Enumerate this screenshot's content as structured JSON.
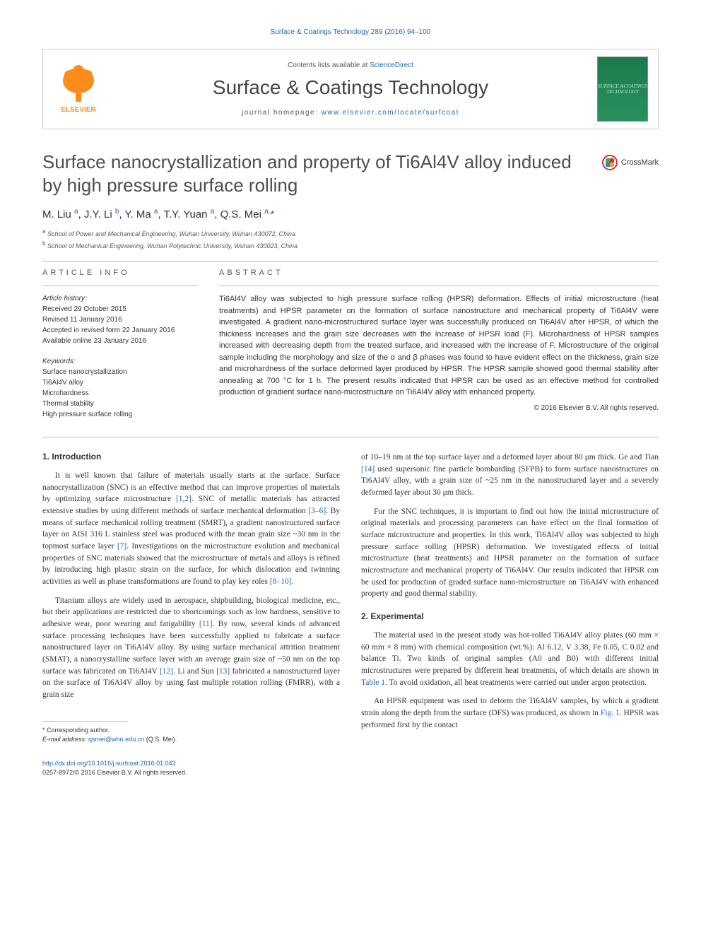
{
  "top_link": "Surface & Coatings Technology 289 (2016) 94–100",
  "header": {
    "contents_prefix": "Contents lists available at ",
    "contents_link_text": "ScienceDirect",
    "journal_name": "Surface & Coatings Technology",
    "homepage_prefix": "journal homepage: ",
    "homepage_link_text": "www.elsevier.com/locate/surfcoat",
    "cover_text": "SURFACE\n&COATINGS\nTECHNOLOGY",
    "elsevier_tree_color": "#ff8c1a",
    "elsevier_text": "ELSEVIER",
    "cover_bg_top": "#1a7a4a",
    "cover_bg_bottom": "#2a9060"
  },
  "title": "Surface nanocrystallization and property of Ti6Al4V alloy induced by high pressure surface rolling",
  "crossmark_label": "CrossMark",
  "authors_html": "M. Liu <sup>a</sup>, J.Y. Li <sup>b</sup>, Y. Ma <sup>a</sup>, T.Y. Yuan <sup>a</sup>, Q.S. Mei <sup class='author-link'>a,</sup><span class='author-link'>*</span>",
  "affiliations": [
    {
      "sup": "a",
      "text": "School of Power and Mechanical Engineering, Wuhan University, Wuhan 430072, China"
    },
    {
      "sup": "b",
      "text": "School of Mechanical Engineering, Wuhan Polytechnic University, Wuhan 430023, China"
    }
  ],
  "article_info": {
    "section_label": "article info",
    "history_label": "Article history:",
    "history": [
      "Received 29 October 2015",
      "Revised 11 January 2016",
      "Accepted in revised form 22 January 2016",
      "Available online 23 January 2016"
    ],
    "keywords_label": "Keywords:",
    "keywords": [
      "Surface nanocrystallization",
      "Ti6Al4V alloy",
      "Microhardness",
      "Thermal stability",
      "High pressure surface rolling"
    ]
  },
  "abstract": {
    "section_label": "abstract",
    "text": "Ti6Al4V alloy was subjected to high pressure surface rolling (HPSR) deformation. Effects of initial microstructure (heat treatments) and HPSR parameter on the formation of surface nanostructure and mechanical property of Ti6Al4V were investigated. A gradient nano-microstructured surface layer was successfully produced on Ti6Al4V after HPSR, of which the thickness increases and the grain size decreases with the increase of HPSR load (F). Microhardness of HPSR samples increased with decreasing depth from the treated surface, and increased with the increase of F. Microstructure of the original sample including the morphology and size of the α and β phases was found to have evident effect on the thickness, grain size and microhardness of the surface deformed layer produced by HPSR. The HPSR sample showed good thermal stability after annealing at 700 °C for 1 h. The present results indicated that HPSR can be used as an effective method for controlled production of gradient surface nano-microstructure on Ti6Al4V alloy with enhanced property.",
    "copyright": "© 2016 Elsevier B.V. All rights reserved."
  },
  "sections": {
    "intro_heading": "1. Introduction",
    "exp_heading": "2. Experimental",
    "col1_paras": [
      "It is well known that failure of materials usually starts at the surface. Surface nanocrystallization (SNC) is an effective method that can improve properties of materials by optimizing surface microstructure [1,2]. SNC of metallic materials has attracted extensive studies by using different methods of surface mechanical deformation [3–6]. By means of surface mechanical rolling treatment (SMRT), a gradient nanostructured surface layer on AISI 316 L stainless steel was produced with the mean grain size ~30 nm in the topmost surface layer [7]. Investigations on the microstructure evolution and mechanical properties of SNC materials showed that the microstructure of metals and alloys is refined by introducing high plastic strain on the surface, for which dislocation and twinning activities as well as phase transformations are found to play key roles [8–10].",
      "Titanium alloys are widely used in aerospace, shipbuilding, biological medicine, etc., but their applications are restricted due to shortcomings such as low hardness, sensitive to adhesive wear, poor wearing and fatigability [11]. By now, several kinds of advanced surface processing techniques have been successfully applied to fabricate a surface nanostructured layer on Ti6Al4V alloy. By using surface mechanical attrition treatment (SMAT), a nanocrystalline surface layer with an average grain size of ~50 nm on the top surface was fabricated on Ti6Al4V [12]. Li and Sun [13] fabricated a nanostructured layer on the surface of Ti6Al4V alloy by using fast multiple rotation rolling (FMRR), with a grain size"
    ],
    "cites_col1": {
      "c1": "[1,2]",
      "c2": "[3–6]",
      "c3": "[7]",
      "c4": "[8–10]",
      "c5": "[11]",
      "c6": "[12]",
      "c7": "[13]"
    },
    "col2_paras": [
      "of 10–19 nm at the top surface layer and a deformed layer about 80 μm thick. Ge and Tian [14] used supersonic fine particle bombarding (SFPB) to form surface nanostructures on Ti6Al4V alloy, with a grain size of ~25 nm in the nanostructured layer and a severely deformed layer about 30 μm thick.",
      "For the SNC techniques, it is important to find out how the initial microstructure of original materials and processing parameters can have effect on the final formation of surface microstructure and properties. In this work, Ti6Al4V alloy was subjected to high pressure surface rolling (HPSR) deformation. We investigated effects of initial microstructure (heat treatments) and HPSR parameter on the formation of surface microstructure and mechanical property of Ti6Al4V. Our results indicated that HPSR can be used for production of graded surface nano-microstructure on Ti6Al4V with enhanced property and good thermal stability.",
      "The material used in the present study was hot-rolled Ti6Al4V alloy plates (60 mm × 60 mm × 8 mm) with chemical composition (wt.%): Al 6.12, V 3.38, Fe 0.05, C 0.02 and balance Ti. Two kinds of original samples (A0 and B0) with different initial microstructures were prepared by different heat treatments, of which details are shown in Table 1. To avoid oxidation, all heat treatments were carried out under argon protection.",
      "An HPSR equipment was used to deform the Ti6Al4V samples, by which a gradient strain along the depth from the surface (DFS) was produced, as shown in Fig. 1. HPSR was performed first by the contact"
    ],
    "cites_col2": {
      "c1": "[14]",
      "c2": "Table 1",
      "c3": "Fig. 1"
    }
  },
  "footer": {
    "corresponding": "* Corresponding author.",
    "email_label": "E-mail address: ",
    "email": "qsmei@whu.edu.cn",
    "email_suffix": " (Q.S. Mei).",
    "doi_link": "http://dx.doi.org/10.1016/j.surfcoat.2016.01.043",
    "issn_line": "0257-8972/© 2016 Elsevier B.V. All rights reserved."
  },
  "colors": {
    "link": "#2068b0",
    "text": "#333333",
    "heading": "#4d4d4d",
    "rule": "#bbbbbb"
  },
  "typography": {
    "title_fontsize": 26,
    "journal_fontsize": 28,
    "body_fontsize": 11.5,
    "abstract_fontsize": 11,
    "small_fontsize": 10
  }
}
